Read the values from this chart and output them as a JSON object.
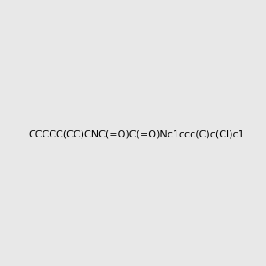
{
  "smiles": "CCCCC(CC)CNC(=O)C(=O)Nc1ccc(C)c(Cl)c1",
  "image_size": 300,
  "background_color": "#e8e8e8",
  "bond_color": "#2d5a27",
  "atom_colors": {
    "N": "#0000ff",
    "O": "#ff0000",
    "Cl": "#00aa00",
    "C": "#2d5a27",
    "H": "#808080"
  },
  "title": ""
}
